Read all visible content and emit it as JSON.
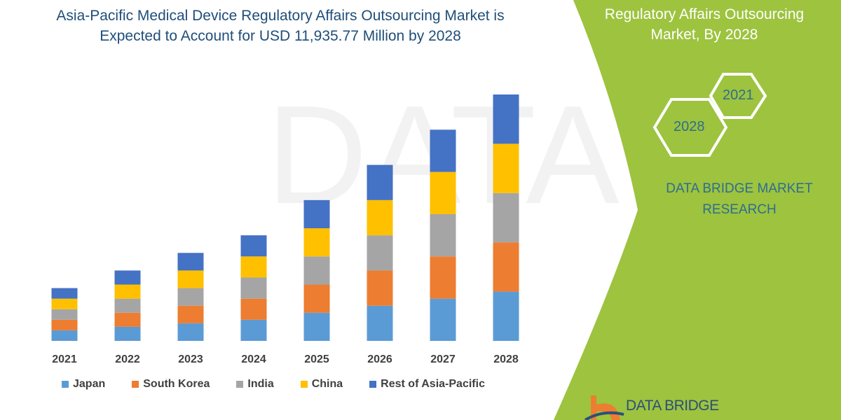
{
  "title": "Asia-Pacific Medical Device Regulatory Affairs Outsourcing Market is Expected to Account for USD 11,935.77 Million by 2028",
  "title_line1": "Asia-Pacific Medical Device Regulatory Affairs Outsourcing Market is",
  "title_line2": "Expected to Account for USD 11,935.77 Million by 2028",
  "side_panel": {
    "title_line1": "Regulatory Affairs Outsourcing",
    "title_line2": "Market, By 2028",
    "hex_years": [
      "2021",
      "2028"
    ],
    "brand_line1": "DATA BRIDGE MARKET",
    "brand_line2": "RESEARCH",
    "logo_text": "DATA BRIDGE",
    "panel_color": "#9dc33f"
  },
  "chart_data": {
    "type": "bar",
    "stacked": true,
    "title": "Asia-Pacific Medical Device Regulatory Affairs Outsourcing Market is Expected to Account for USD 11,935.77 Million by 2028",
    "categories": [
      "2021",
      "2022",
      "2023",
      "2024",
      "2025",
      "2026",
      "2027",
      "2028"
    ],
    "series": [
      {
        "name": "Japan",
        "color": "#5b9bd5",
        "values": [
          15,
          20,
          25,
          30,
          40,
          50,
          60,
          70
        ]
      },
      {
        "name": "South Korea",
        "color": "#ed7d31",
        "values": [
          15,
          20,
          25,
          30,
          40,
          50,
          60,
          70
        ]
      },
      {
        "name": "India",
        "color": "#a5a5a5",
        "values": [
          15,
          20,
          25,
          30,
          40,
          50,
          60,
          70
        ]
      },
      {
        "name": "China",
        "color": "#ffc000",
        "values": [
          15,
          20,
          25,
          30,
          40,
          50,
          60,
          70
        ]
      },
      {
        "name": "Rest of Asia-Pacific",
        "color": "#4472c4",
        "values": [
          15,
          20,
          25,
          30,
          40,
          50,
          60,
          70
        ]
      }
    ],
    "xlabel": "",
    "ylabel": "",
    "y_axis_shown": false,
    "grid": false,
    "legend_placement": "bottom"
  }
}
